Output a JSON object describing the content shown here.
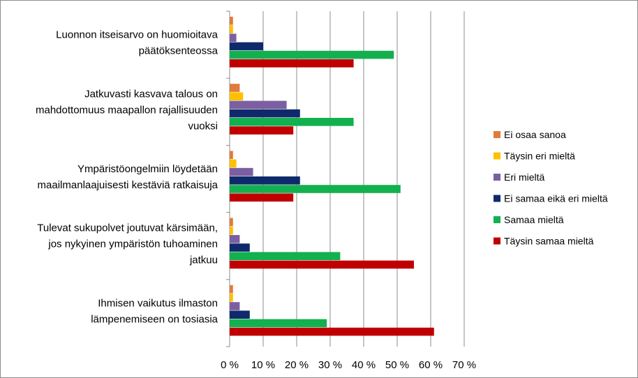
{
  "chart_data": {
    "type": "bar",
    "orientation": "horizontal",
    "categories": [
      [
        "Luonnon itseisarvo on huomioitava",
        "päätöksenteossa"
      ],
      [
        "Jatkuvasti kasvava talous on",
        "mahdottomuus maapallon rajallisuuden",
        "vuoksi"
      ],
      [
        "Ympäristöongelmiin löydetään",
        "maailmanlaajuisesti kestäviä ratkaisuja"
      ],
      [
        "Tulevat sukupolvet joutuvat kärsimään,",
        "jos nykyinen ympäristön tuhoaminen",
        "jatkuu"
      ],
      [
        "Ihmisen vaikutus ilmaston",
        "lämpenemiseen on tosiasia"
      ]
    ],
    "series": [
      {
        "name": "Ei osaa sanoa",
        "color": "#e07b39",
        "values": [
          1,
          3,
          1,
          1,
          1
        ]
      },
      {
        "name": "Täysin eri mieltä",
        "color": "#ffc000",
        "values": [
          1,
          4,
          2,
          1,
          1
        ]
      },
      {
        "name": "Eri mieltä",
        "color": "#7b5fa0",
        "values": [
          2,
          17,
          7,
          3,
          3
        ]
      },
      {
        "name": "Ei samaa eikä eri mieltä",
        "color": "#0f2a6b",
        "values": [
          10,
          21,
          21,
          6,
          6
        ]
      },
      {
        "name": "Samaa mieltä",
        "color": "#13b050",
        "values": [
          49,
          37,
          51,
          33,
          29
        ]
      },
      {
        "name": "Täysin samaa mieltä",
        "color": "#c00000",
        "values": [
          37,
          19,
          19,
          55,
          61
        ]
      }
    ],
    "xlim": [
      0,
      70
    ],
    "xticks": [
      "0 %",
      "10 %",
      "20 %",
      "30 %",
      "40 %",
      "50 %",
      "60 %",
      "70 %"
    ],
    "grid": true,
    "legend": "right"
  }
}
